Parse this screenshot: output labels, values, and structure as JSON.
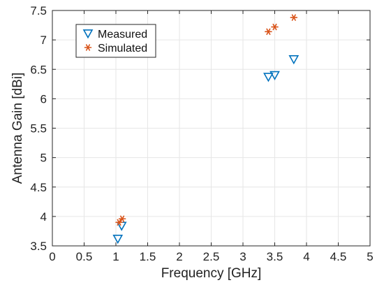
{
  "chart_data": {
    "type": "scatter",
    "xlabel": "Frequency [GHz]",
    "ylabel": "Antenna Gain [dBi]",
    "xlim": [
      0,
      5
    ],
    "ylim": [
      3.5,
      7.5
    ],
    "x_ticks": [
      "0",
      "0.5",
      "1",
      "1.5",
      "2",
      "2.5",
      "3",
      "3.5",
      "4",
      "4.5",
      "5"
    ],
    "y_ticks": [
      "3.5",
      "4",
      "4.5",
      "5",
      "5.5",
      "6",
      "6.5",
      "7",
      "7.5"
    ],
    "grid": true,
    "legend_position": "top-left",
    "series": [
      {
        "name": "Measured",
        "marker": "triangle-down",
        "color": "#0072BD",
        "points": [
          {
            "x": 1.03,
            "y": 3.62
          },
          {
            "x": 1.09,
            "y": 3.84
          },
          {
            "x": 3.4,
            "y": 6.37
          },
          {
            "x": 3.5,
            "y": 6.4
          },
          {
            "x": 3.8,
            "y": 6.67
          }
        ]
      },
      {
        "name": "Simulated",
        "marker": "asterisk",
        "color": "#D95319",
        "points": [
          {
            "x": 1.05,
            "y": 3.9
          },
          {
            "x": 1.1,
            "y": 3.96
          },
          {
            "x": 3.4,
            "y": 7.14
          },
          {
            "x": 3.5,
            "y": 7.22
          },
          {
            "x": 3.8,
            "y": 7.38
          }
        ]
      }
    ]
  }
}
